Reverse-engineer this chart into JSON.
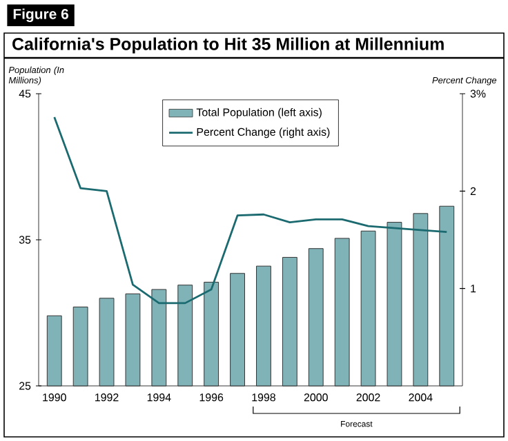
{
  "chart_data": {
    "type": "bar",
    "title": "California's Population to Hit 35 Million at Millennium",
    "ylabel": "Population (In Millions)",
    "y2label": "Percent Change",
    "annotations": [
      "Figure 6",
      "Forecast"
    ],
    "categories": [
      "1990",
      null,
      "1992",
      null,
      "1994",
      null,
      "1996",
      null,
      "1998",
      null,
      "2000",
      null,
      "2002",
      null,
      "2004",
      null
    ],
    "series": [
      {
        "name": "Total Population (left axis)",
        "color": "#7fb3b8",
        "values": [
          29.8,
          30.4,
          31.0,
          31.3,
          31.6,
          31.9,
          32.1,
          32.7,
          33.2,
          33.8,
          34.4,
          35.1,
          35.6,
          36.2,
          36.8,
          37.3
        ]
      },
      {
        "name": "Percent Change (right axis)",
        "type": "line",
        "axis": "y2",
        "color": "#1a6a70",
        "values": [
          2.76,
          2.03,
          2.0,
          1.04,
          0.85,
          0.85,
          0.99,
          1.75,
          1.76,
          1.68,
          1.71,
          1.71,
          1.64,
          1.62,
          1.6,
          1.58
        ]
      }
    ],
    "ylim": [
      25,
      45
    ],
    "yticks": [
      25,
      35,
      45
    ],
    "y2lim": [
      0,
      3
    ],
    "y2ticks": [
      1,
      2,
      {
        "value": 3,
        "label": "3%"
      }
    ],
    "legend": "top"
  }
}
